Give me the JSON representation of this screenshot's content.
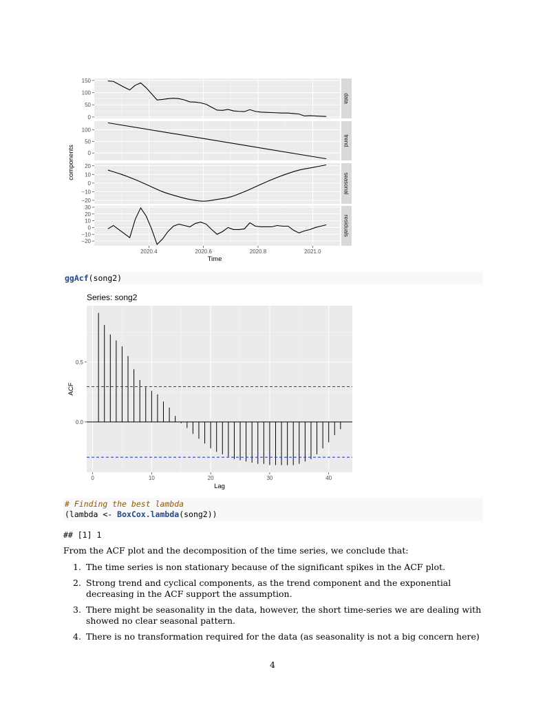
{
  "decomp": {
    "ylabel": "components",
    "xlabel": "Time",
    "x_ticks": [
      "2020.4",
      "2020.6",
      "2020.8",
      "2021.0"
    ],
    "panels": [
      {
        "label": "data",
        "ticks": [
          "150",
          "100",
          "50",
          "0"
        ]
      },
      {
        "label": "trend",
        "ticks": [
          "100",
          "50",
          "0"
        ]
      },
      {
        "label": "seasonal",
        "ticks": [
          "20",
          "10",
          "0",
          "−10",
          "−20"
        ]
      },
      {
        "label": "residuals",
        "ticks": [
          "30",
          "20",
          "10",
          "0",
          "−10",
          "−20"
        ]
      }
    ]
  },
  "code1": {
    "fn": "ggAcf",
    "rest": "(song2)"
  },
  "acf": {
    "title": "Series: song2",
    "ylabel": "ACF",
    "xlabel": "Lag",
    "x_ticks": [
      "0",
      "10",
      "20",
      "30",
      "40"
    ],
    "y_ticks": [
      "0.5",
      "0.0"
    ]
  },
  "chart_data": [
    {
      "type": "line",
      "title": "",
      "xlabel": "Time",
      "ylabel": "components",
      "xlim": [
        2020.25,
        2021.05
      ],
      "series": [
        {
          "name": "data",
          "x": [
            2020.25,
            2020.27,
            2020.29,
            2020.31,
            2020.33,
            2020.35,
            2020.37,
            2020.39,
            2020.41,
            2020.43,
            2020.45,
            2020.47,
            2020.49,
            2020.51,
            2020.53,
            2020.55,
            2020.57,
            2020.59,
            2020.61,
            2020.63,
            2020.65,
            2020.67,
            2020.69,
            2020.71,
            2020.73,
            2020.75,
            2020.77,
            2020.79,
            2020.81,
            2020.83,
            2020.85,
            2020.87,
            2020.89,
            2020.91,
            2020.93,
            2020.95,
            2020.97,
            2020.99,
            2021.01,
            2021.03,
            2021.05
          ],
          "values": [
            148,
            146,
            134,
            122,
            111,
            130,
            140,
            120,
            95,
            70,
            72,
            75,
            77,
            75,
            70,
            62,
            61,
            58,
            52,
            40,
            28,
            27,
            31,
            25,
            23,
            22,
            30,
            23,
            20,
            19,
            18,
            17,
            16,
            16,
            14,
            12,
            4,
            5,
            4,
            3,
            2
          ]
        },
        {
          "name": "trend",
          "x": [
            2020.25,
            2021.05
          ],
          "values": [
            130,
            -25
          ]
        },
        {
          "name": "seasonal",
          "x": [
            2020.25,
            2020.3,
            2020.35,
            2020.4,
            2020.45,
            2020.5,
            2020.55,
            2020.6,
            2020.65,
            2020.7,
            2020.75,
            2020.8,
            2020.85,
            2020.9,
            2020.95,
            2021.0,
            2021.05
          ],
          "values": [
            15,
            10,
            4,
            -3,
            -10,
            -15,
            -19,
            -21,
            -19,
            -16,
            -10,
            -3,
            4,
            10,
            15,
            18,
            21
          ]
        },
        {
          "name": "residuals",
          "x": [
            2020.25,
            2020.27,
            2020.29,
            2020.31,
            2020.33,
            2020.35,
            2020.37,
            2020.39,
            2020.41,
            2020.43,
            2020.45,
            2020.47,
            2020.49,
            2020.51,
            2020.53,
            2020.55,
            2020.57,
            2020.59,
            2020.61,
            2020.63,
            2020.65,
            2020.67,
            2020.69,
            2020.71,
            2020.73,
            2020.75,
            2020.77,
            2020.79,
            2020.81,
            2020.83,
            2020.85,
            2020.87,
            2020.89,
            2020.91,
            2020.93,
            2020.95,
            2020.97,
            2020.99,
            2021.01,
            2021.03,
            2021.05
          ],
          "values": [
            -2,
            3,
            -3,
            -9,
            -15,
            12,
            29,
            17,
            -2,
            -25,
            -17,
            -6,
            2,
            5,
            3,
            1,
            6,
            8,
            5,
            -3,
            -10,
            -6,
            0,
            -3,
            -3,
            -2,
            7,
            2,
            1,
            1,
            1,
            3,
            2,
            2,
            -4,
            -8,
            -5,
            -3,
            0,
            2,
            4
          ]
        }
      ]
    },
    {
      "type": "bar",
      "title": "Series: song2",
      "xlabel": "Lag",
      "ylabel": "ACF",
      "xlim": [
        -1,
        44
      ],
      "ylim": [
        -0.42,
        0.97
      ],
      "ci": [
        0.295,
        -0.295
      ],
      "x": [
        1,
        2,
        3,
        4,
        5,
        6,
        7,
        8,
        9,
        10,
        11,
        12,
        13,
        14,
        15,
        16,
        17,
        18,
        19,
        20,
        21,
        22,
        23,
        24,
        25,
        26,
        27,
        28,
        29,
        30,
        31,
        32,
        33,
        34,
        35,
        36,
        37,
        38,
        39,
        40,
        41,
        42
      ],
      "values": [
        0.91,
        0.81,
        0.73,
        0.68,
        0.63,
        0.55,
        0.44,
        0.35,
        0.29,
        0.26,
        0.23,
        0.17,
        0.12,
        0.05,
        -0.01,
        -0.05,
        -0.1,
        -0.14,
        -0.18,
        -0.22,
        -0.25,
        -0.27,
        -0.29,
        -0.31,
        -0.32,
        -0.33,
        -0.34,
        -0.35,
        -0.35,
        -0.36,
        -0.36,
        -0.36,
        -0.36,
        -0.36,
        -0.35,
        -0.33,
        -0.31,
        -0.27,
        -0.22,
        -0.17,
        -0.11,
        -0.06
      ]
    }
  ],
  "code2": {
    "comment": "# Finding the best lambda",
    "pre": "(lambda <- ",
    "fn": "BoxCox.lambda",
    "post": "(song2))"
  },
  "output": "## [1] 1",
  "conclusion": "From the ACF plot and the decomposition of the time series, we conclude that:",
  "list": [
    {
      "num": "1.",
      "text": "The time series is non stationary because of the significant spikes in the ACF plot."
    },
    {
      "num": "2.",
      "text": "Strong trend and cyclical components, as the trend component and the exponential decreasing in the ACF support the assumption."
    },
    {
      "num": "3.",
      "text": "There might be seasonality in the data, however, the short time-series we are dealing with showed no clear seasonal pattern."
    },
    {
      "num": "4.",
      "text": "There is no transformation required for the data (as seasonality is not a big concern here)"
    }
  ],
  "page_number": "4"
}
